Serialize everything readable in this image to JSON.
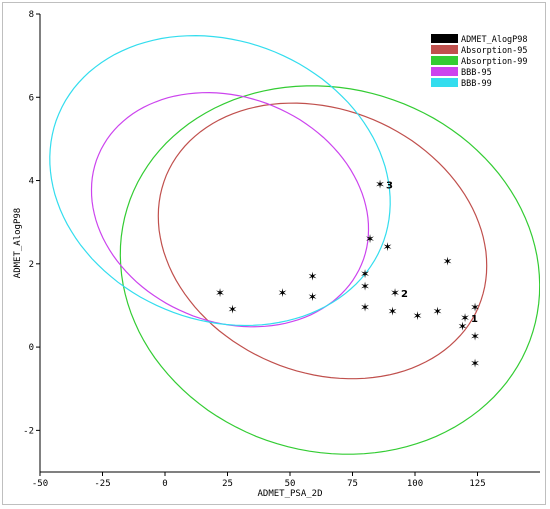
{
  "chart_data": {
    "type": "scatter",
    "title": "",
    "xlabel": "ADMET_PSA_2D",
    "ylabel": "ADMET_AlogP98",
    "xlim": [
      -50,
      150
    ],
    "ylim": [
      -3,
      8
    ],
    "x_ticks": [
      "-50",
      "-25",
      "0",
      "25",
      "50",
      "75",
      "100",
      "125"
    ],
    "y_ticks": [
      "-2",
      "0",
      "2",
      "4",
      "6",
      "8"
    ],
    "grid": false,
    "legend_position": "top-right",
    "legend": [
      {
        "name": "ADMET_AlogP98",
        "color": "#000000"
      },
      {
        "name": "Absorption-95",
        "color": "#c0504d"
      },
      {
        "name": "Absorption-99",
        "color": "#33cc33"
      },
      {
        "name": "BBB-95",
        "color": "#cc44ee"
      },
      {
        "name": "BBB-99",
        "color": "#33ddee"
      }
    ],
    "ellipses": [
      {
        "name": "Absorption-95",
        "cx": 63,
        "cy": 2.55,
        "rx": 69,
        "ry": 3.1,
        "angle_deg": 32,
        "color": "#c0504d"
      },
      {
        "name": "Absorption-99",
        "cx": 66,
        "cy": 1.85,
        "rx": 86,
        "ry": 4.3,
        "angle_deg": 32,
        "color": "#33cc33"
      },
      {
        "name": "BBB-95",
        "cx": 26,
        "cy": 3.3,
        "rx": 58,
        "ry": 2.65,
        "angle_deg": 32,
        "color": "#cc44ee"
      },
      {
        "name": "BBB-99",
        "cx": 22,
        "cy": 4.0,
        "rx": 71,
        "ry": 3.3,
        "angle_deg": 32,
        "color": "#33ddee"
      }
    ],
    "points": [
      {
        "x": 22,
        "y": 1.3,
        "label": ""
      },
      {
        "x": 27,
        "y": 0.9,
        "label": ""
      },
      {
        "x": 47,
        "y": 1.3,
        "label": ""
      },
      {
        "x": 59,
        "y": 1.7,
        "label": ""
      },
      {
        "x": 59,
        "y": 1.2,
        "label": ""
      },
      {
        "x": 80,
        "y": 1.75,
        "label": ""
      },
      {
        "x": 80,
        "y": 1.45,
        "label": ""
      },
      {
        "x": 80,
        "y": 0.95,
        "label": ""
      },
      {
        "x": 82,
        "y": 2.6,
        "label": ""
      },
      {
        "x": 86,
        "y": 3.9,
        "label": "3"
      },
      {
        "x": 89,
        "y": 2.4,
        "label": ""
      },
      {
        "x": 91,
        "y": 0.85,
        "label": ""
      },
      {
        "x": 92,
        "y": 1.3,
        "label": "2"
      },
      {
        "x": 101,
        "y": 0.75,
        "label": ""
      },
      {
        "x": 109,
        "y": 0.85,
        "label": ""
      },
      {
        "x": 113,
        "y": 2.05,
        "label": ""
      },
      {
        "x": 119,
        "y": 0.5,
        "label": ""
      },
      {
        "x": 120,
        "y": 0.7,
        "label": "1"
      },
      {
        "x": 124,
        "y": 0.95,
        "label": ""
      },
      {
        "x": 124,
        "y": 0.25,
        "label": ""
      },
      {
        "x": 124,
        "y": -0.4,
        "label": ""
      }
    ]
  }
}
